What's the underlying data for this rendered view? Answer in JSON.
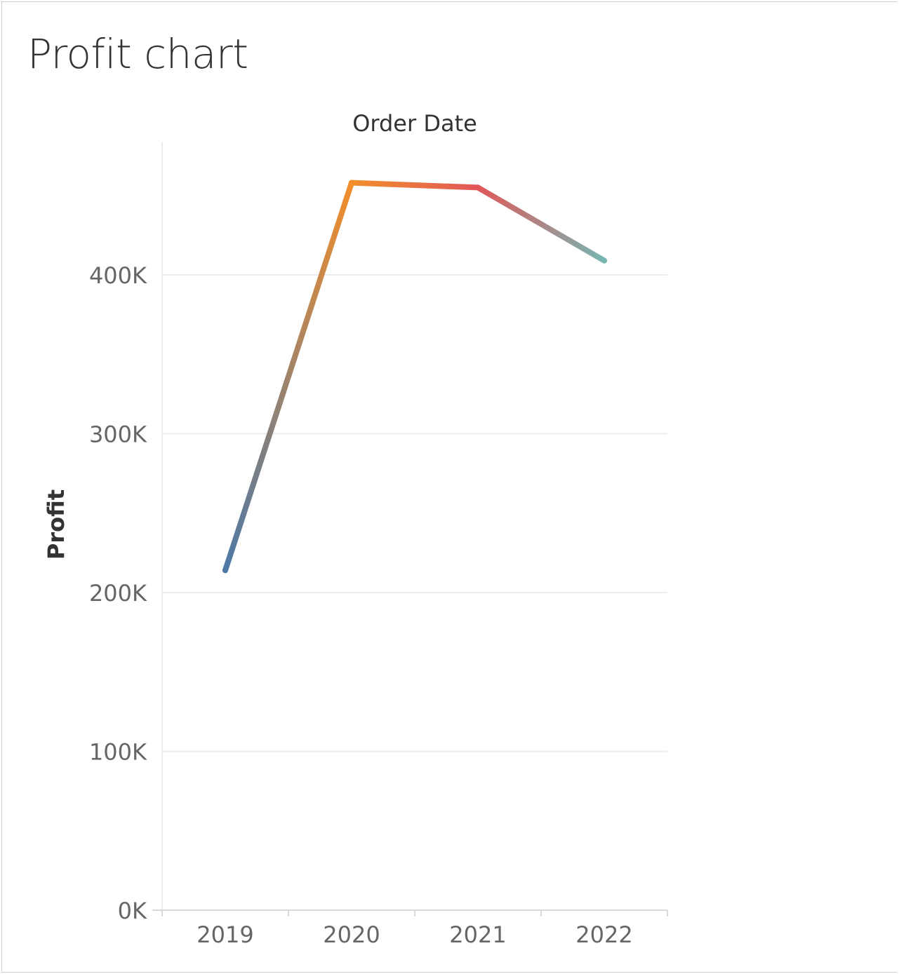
{
  "title": "Profit chart",
  "chart_data": {
    "type": "line",
    "x_header": "Order Date",
    "ylabel": "Profit",
    "categories": [
      "2019",
      "2020",
      "2021",
      "2022"
    ],
    "series": [
      {
        "values": [
          214000,
          458000,
          455000,
          409000
        ]
      }
    ],
    "ylim": [
      0,
      480000
    ],
    "y_ticks": [
      {
        "value": 0,
        "label": "0K"
      },
      {
        "value": 100000,
        "label": "100K"
      },
      {
        "value": 200000,
        "label": "200K"
      },
      {
        "value": 300000,
        "label": "300K"
      },
      {
        "value": 400000,
        "label": "400K"
      }
    ],
    "grid": true,
    "gradient_colors": [
      "#4e79a7",
      "#f28e2b",
      "#e15759",
      "#76b7b2"
    ]
  }
}
